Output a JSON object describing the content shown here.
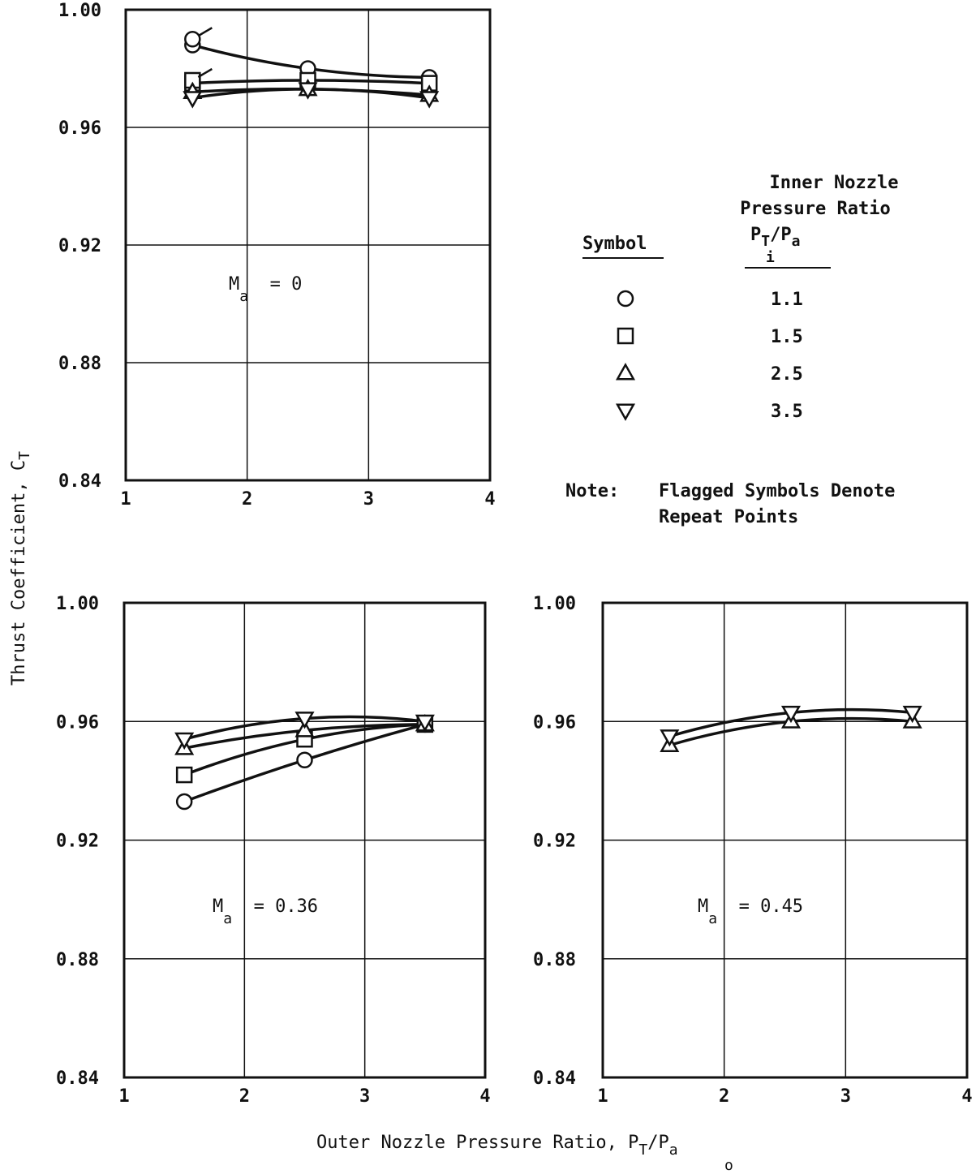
{
  "figure": {
    "ylabel_main": "Thrust Coefficient, C",
    "ylabel_sub": "T",
    "xlabel_main": "Outer Nozzle Pressure Ratio, P",
    "xlabel_sub1": "T",
    "xlabel_sub2": "o",
    "xlabel_tail": "/P",
    "xlabel_sub3": "a"
  },
  "legend": {
    "header_line1": "Inner Nozzle",
    "header_line2": "Pressure  Ratio",
    "header_p": "P",
    "header_t": "T",
    "header_i": "i",
    "header_slash": "/P",
    "header_a": "a",
    "symbol_header": "Symbol",
    "entries": [
      {
        "symbol": "circle-icon",
        "value": "1.1"
      },
      {
        "symbol": "square-icon",
        "value": "1.5"
      },
      {
        "symbol": "triangle-up-icon",
        "value": "2.5"
      },
      {
        "symbol": "triangle-down-icon",
        "value": "3.5"
      }
    ],
    "note_label": "Note:",
    "note_line1": "Flagged Symbols Denote",
    "note_line2": "Repeat Points"
  },
  "chart_data": [
    {
      "type": "line",
      "panel": "top-left",
      "annotation_main": "M",
      "annotation_sub": "a",
      "annotation_tail": " = 0",
      "xlim": [
        1,
        4
      ],
      "ylim": [
        0.84,
        1.0
      ],
      "xticks": [
        "1",
        "2",
        "3",
        "4"
      ],
      "yticks": [
        "0.84",
        "0.88",
        "0.92",
        "0.96",
        "1.00"
      ],
      "grid": true,
      "series": [
        {
          "name": "1.1",
          "marker": "circle",
          "x": [
            1.55,
            2.5,
            3.5
          ],
          "y": [
            0.988,
            0.98,
            0.977
          ],
          "repeat": [
            {
              "x": 1.55,
              "y": 0.99
            }
          ]
        },
        {
          "name": "1.5",
          "marker": "square",
          "x": [
            1.55,
            2.5,
            3.5
          ],
          "y": [
            0.975,
            0.976,
            0.975
          ],
          "repeat": [
            {
              "x": 1.55,
              "y": 0.976
            }
          ]
        },
        {
          "name": "2.5",
          "marker": "triangle-up",
          "x": [
            1.55,
            2.5,
            3.5
          ],
          "y": [
            0.972,
            0.973,
            0.971
          ],
          "repeat": []
        },
        {
          "name": "3.5",
          "marker": "triangle-down",
          "x": [
            1.55,
            2.5,
            3.5
          ],
          "y": [
            0.97,
            0.973,
            0.97
          ],
          "repeat": []
        }
      ]
    },
    {
      "type": "line",
      "panel": "bottom-left",
      "annotation_main": "M",
      "annotation_sub": "a",
      "annotation_tail": " = 0.36",
      "xlim": [
        1,
        4
      ],
      "ylim": [
        0.84,
        1.0
      ],
      "xticks": [
        "1",
        "2",
        "3",
        "4"
      ],
      "yticks": [
        "0.84",
        "0.88",
        "0.92",
        "0.96",
        "1.00"
      ],
      "grid": true,
      "series": [
        {
          "name": "1.1",
          "marker": "circle",
          "x": [
            1.5,
            2.5,
            3.5
          ],
          "y": [
            0.933,
            0.947,
            0.959
          ],
          "repeat": []
        },
        {
          "name": "1.5",
          "marker": "square",
          "x": [
            1.5,
            2.5,
            3.5
          ],
          "y": [
            0.942,
            0.954,
            0.959
          ],
          "repeat": []
        },
        {
          "name": "2.5",
          "marker": "triangle-up",
          "x": [
            1.5,
            2.5,
            3.5
          ],
          "y": [
            0.951,
            0.957,
            0.959
          ],
          "repeat": []
        },
        {
          "name": "3.5",
          "marker": "triangle-down",
          "x": [
            1.5,
            2.5,
            3.5
          ],
          "y": [
            0.954,
            0.961,
            0.96
          ],
          "repeat": []
        }
      ]
    },
    {
      "type": "line",
      "panel": "bottom-right",
      "annotation_main": "M",
      "annotation_sub": "a",
      "annotation_tail": " = 0.45",
      "xlim": [
        1,
        4
      ],
      "ylim": [
        0.84,
        1.0
      ],
      "xticks": [
        "1",
        "2",
        "3",
        "4"
      ],
      "yticks": [
        "0.84",
        "0.88",
        "0.92",
        "0.96",
        "1.00"
      ],
      "grid": true,
      "series": [
        {
          "name": "2.5",
          "marker": "triangle-up",
          "x": [
            1.55,
            2.55,
            3.55
          ],
          "y": [
            0.952,
            0.96,
            0.96
          ],
          "repeat": []
        },
        {
          "name": "3.5",
          "marker": "triangle-down",
          "x": [
            1.55,
            2.55,
            3.55
          ],
          "y": [
            0.955,
            0.963,
            0.963
          ],
          "repeat": []
        }
      ]
    }
  ]
}
